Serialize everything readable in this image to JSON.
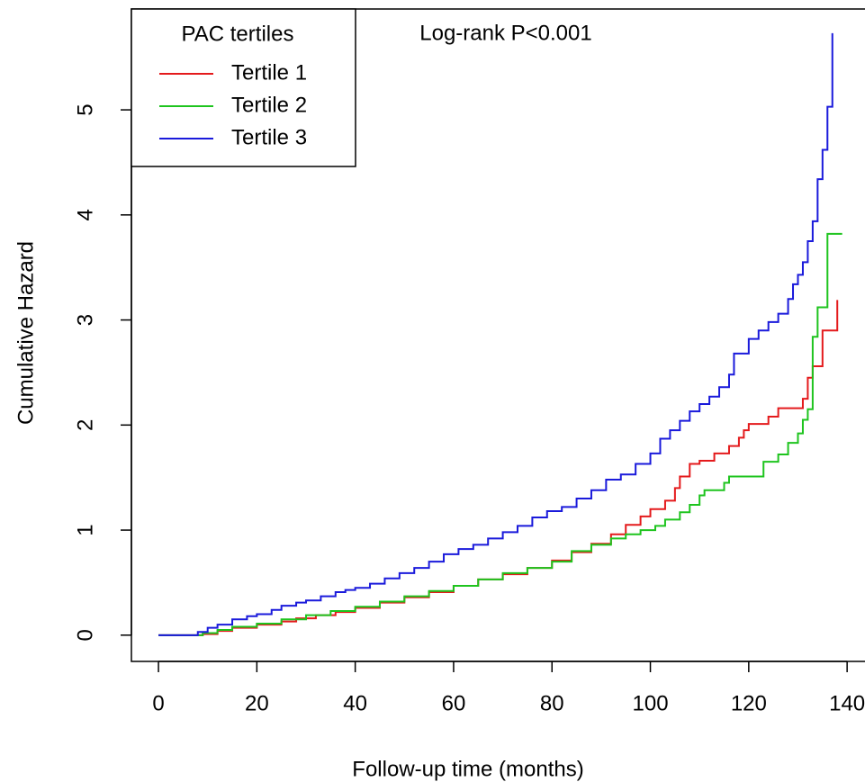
{
  "chart_data": {
    "type": "step",
    "xlabel": "Follow-up time (months)",
    "ylabel": "Cumulative Hazard",
    "annotation": "Log-rank P<0.001",
    "legend_title": "PAC tertiles",
    "legend": "top-left",
    "xlim": [
      -5.5,
      144
    ],
    "ylim": [
      -0.25,
      5.96
    ],
    "xticks": [
      0,
      20,
      40,
      60,
      80,
      100,
      120,
      140
    ],
    "yticks": [
      0,
      1,
      2,
      3,
      4,
      5
    ],
    "series": [
      {
        "name": "Tertile 1",
        "color": "#e41a1c",
        "x": [
          0,
          6,
          9,
          12,
          15,
          20,
          25,
          28,
          32,
          36,
          40,
          45,
          50,
          55,
          60,
          65,
          70,
          75,
          80,
          84,
          88,
          92,
          95,
          98,
          100,
          103,
          105,
          106,
          108,
          110,
          113,
          116,
          118,
          119,
          120,
          124,
          126,
          131,
          132,
          133,
          135,
          138
        ],
        "values": [
          0,
          0,
          0.01,
          0.04,
          0.07,
          0.1,
          0.13,
          0.16,
          0.19,
          0.22,
          0.26,
          0.31,
          0.36,
          0.41,
          0.47,
          0.53,
          0.58,
          0.64,
          0.71,
          0.79,
          0.87,
          0.96,
          1.05,
          1.13,
          1.2,
          1.28,
          1.4,
          1.51,
          1.63,
          1.66,
          1.73,
          1.8,
          1.88,
          1.95,
          2.01,
          2.08,
          2.16,
          2.25,
          2.45,
          2.56,
          2.9,
          3.19
        ]
      },
      {
        "name": "Tertile 2",
        "color": "#1ec41e",
        "x": [
          0,
          6,
          9,
          12,
          15,
          20,
          25,
          30,
          35,
          40,
          45,
          50,
          55,
          60,
          65,
          70,
          75,
          80,
          84,
          88,
          92,
          95,
          98,
          101,
          103,
          106,
          108,
          110,
          111,
          115,
          116,
          123,
          126,
          128,
          130,
          131,
          132,
          133,
          134,
          136,
          139
        ],
        "values": [
          0,
          0,
          0.02,
          0.05,
          0.08,
          0.11,
          0.15,
          0.19,
          0.23,
          0.27,
          0.32,
          0.37,
          0.42,
          0.47,
          0.53,
          0.59,
          0.64,
          0.7,
          0.8,
          0.86,
          0.92,
          0.96,
          1.0,
          1.04,
          1.1,
          1.17,
          1.24,
          1.33,
          1.38,
          1.45,
          1.51,
          1.65,
          1.72,
          1.83,
          1.92,
          2.05,
          2.15,
          2.84,
          3.12,
          3.82,
          3.82
        ]
      },
      {
        "name": "Tertile 3",
        "color": "#1a1adb",
        "x": [
          0,
          6,
          8,
          10,
          12,
          15,
          18,
          20,
          23,
          25,
          28,
          30,
          33,
          36,
          38,
          40,
          43,
          46,
          49,
          52,
          55,
          58,
          61,
          64,
          67,
          70,
          73,
          76,
          79,
          82,
          85,
          88,
          91,
          94,
          97,
          100,
          102,
          104,
          106,
          108,
          110,
          112,
          114,
          116,
          117,
          120,
          122,
          124,
          126,
          128,
          129,
          130,
          131,
          132,
          133,
          134,
          135,
          136,
          137
        ],
        "values": [
          0,
          0,
          0.03,
          0.07,
          0.1,
          0.15,
          0.18,
          0.2,
          0.24,
          0.28,
          0.31,
          0.33,
          0.37,
          0.41,
          0.43,
          0.45,
          0.49,
          0.54,
          0.59,
          0.64,
          0.7,
          0.77,
          0.82,
          0.86,
          0.92,
          0.98,
          1.04,
          1.12,
          1.18,
          1.22,
          1.3,
          1.38,
          1.48,
          1.53,
          1.63,
          1.73,
          1.87,
          1.95,
          2.04,
          2.13,
          2.2,
          2.27,
          2.36,
          2.48,
          2.68,
          2.82,
          2.9,
          2.98,
          3.06,
          3.2,
          3.34,
          3.43,
          3.55,
          3.75,
          3.94,
          4.34,
          4.62,
          5.03,
          5.73
        ]
      }
    ]
  }
}
